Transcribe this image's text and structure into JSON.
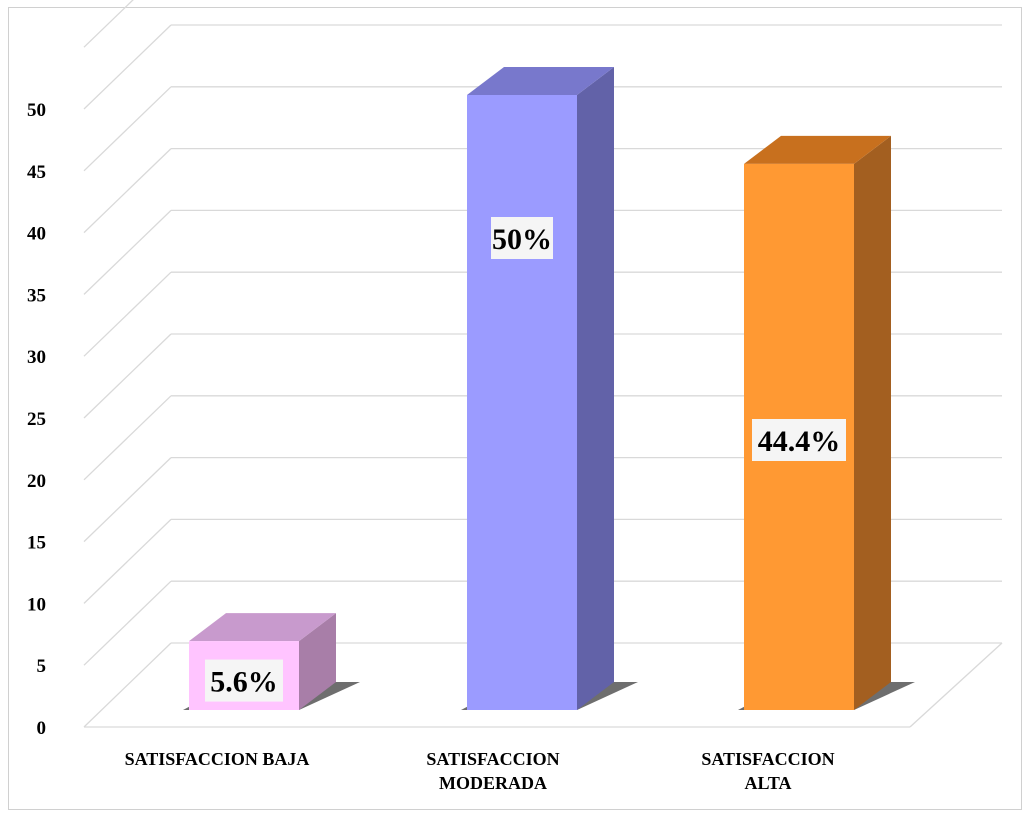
{
  "chart_data": {
    "type": "bar",
    "title": "",
    "xlabel": "",
    "ylabel": "",
    "categories": [
      [
        "SATISFACCION BAJA"
      ],
      [
        "SATISFACCION",
        "MODERADA"
      ],
      [
        "SATISFACCION",
        "ALTA"
      ]
    ],
    "values": [
      5.6,
      50,
      44.4
    ],
    "data_labels": [
      "5.6%",
      "50%",
      "44.4%"
    ],
    "ylim": [
      0,
      50
    ],
    "yticks": [
      "0",
      "5",
      "10",
      "15",
      "20",
      "25",
      "30",
      "35",
      "40",
      "45",
      "50"
    ],
    "grid": true,
    "legend": "none",
    "colors": [
      {
        "front": "#ffc4ff",
        "top": "#c89acd",
        "side": "#a87ea8"
      },
      {
        "front": "#9b9bff",
        "top": "#7878cc",
        "side": "#6262a8"
      },
      {
        "front": "#ff9933",
        "top": "#c8701e",
        "side": "#a35f20"
      }
    ]
  }
}
